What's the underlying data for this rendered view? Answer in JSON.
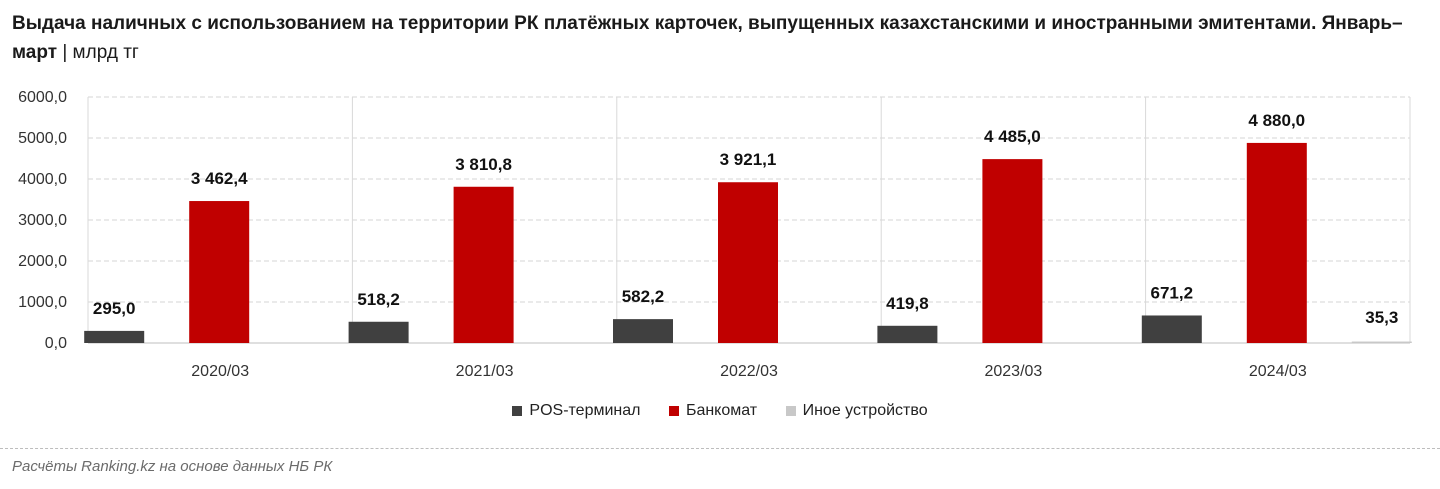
{
  "title": "Выдача наличных с использованием на территории РК платёжных карточек, выпущенных казахстанскими и иностранными эмитентами. Январь–март",
  "title_sep": "|",
  "unit": "млрд тг",
  "source": "Расчёты Ranking.kz на основе данных НБ РК",
  "chart_data": {
    "type": "bar",
    "categories": [
      "2020/03",
      "2021/03",
      "2022/03",
      "2023/03",
      "2024/03"
    ],
    "series": [
      {
        "name": "POS-терминал",
        "color": "#404040",
        "values": [
          295.0,
          518.2,
          582.2,
          419.8,
          671.2
        ],
        "labels": [
          "295,0",
          "518,2",
          "582,2",
          "419,8",
          "671,2"
        ]
      },
      {
        "name": "Банкомат",
        "color": "#c00000",
        "values": [
          3462.4,
          3810.8,
          3921.1,
          4485.0,
          4880.0
        ],
        "labels": [
          "3 462,4",
          "3 810,8",
          "3 921,1",
          "4 485,0",
          "4 880,0"
        ]
      },
      {
        "name": "Иное устройство",
        "color": "#c8c8c8",
        "values": [
          null,
          null,
          null,
          null,
          35.3
        ],
        "labels": [
          "",
          "",
          "",
          "",
          "35,3"
        ]
      }
    ],
    "ylim": [
      0,
      6000
    ],
    "yticks": [
      "0,0",
      "1000,0",
      "2000,0",
      "3000,0",
      "4000,0",
      "5000,0",
      "6000,0"
    ],
    "grid": true,
    "legend": "bottom"
  }
}
